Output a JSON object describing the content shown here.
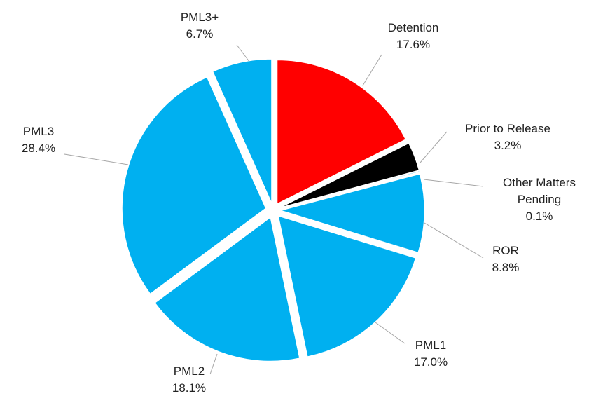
{
  "chart_data": {
    "type": "pie",
    "categories": [
      "Detention",
      "Prior to Release",
      "Other Matters Pending",
      "ROR",
      "PML1",
      "PML2",
      "PML3",
      "PML3+"
    ],
    "values": [
      17.6,
      3.2,
      0.1,
      8.8,
      17.0,
      18.1,
      28.4,
      6.7
    ],
    "value_labels": [
      "17.6%",
      "3.2%",
      "0.1%",
      "8.8%",
      "17.0%",
      "18.1%",
      "28.4%",
      "6.7%"
    ],
    "colors": [
      "#ff0000",
      "#000000",
      "#00b0f0",
      "#00b0f0",
      "#00b0f0",
      "#00b0f0",
      "#00b0f0",
      "#00b0f0"
    ]
  }
}
